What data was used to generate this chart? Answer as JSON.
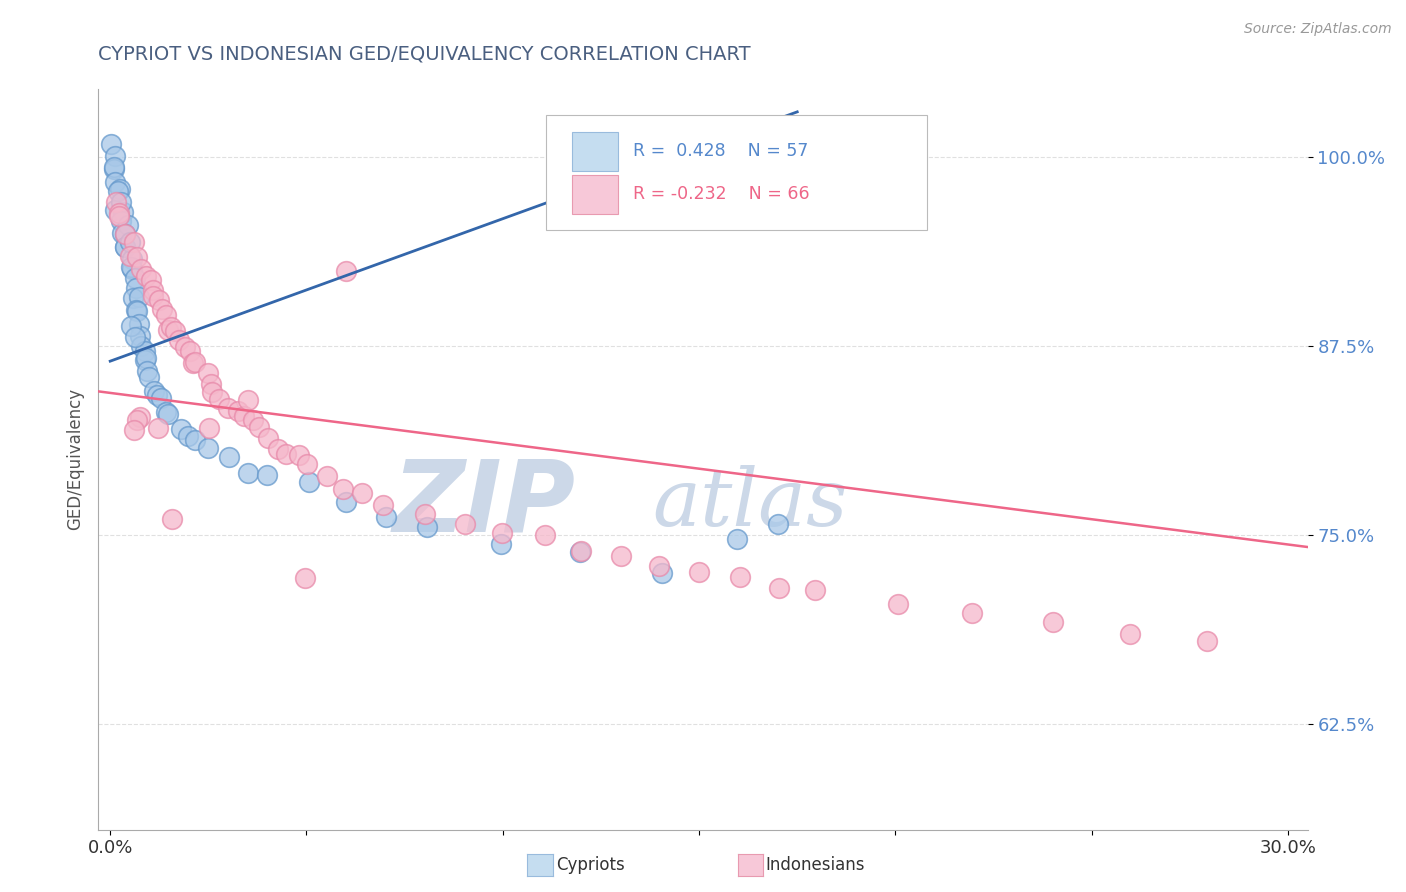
{
  "title": "CYPRIOT VS INDONESIAN GED/EQUIVALENCY CORRELATION CHART",
  "source": "Source: ZipAtlas.com",
  "ylabel": "GED/Equivalency",
  "xlim": [
    -0.003,
    0.305
  ],
  "ylim": [
    0.555,
    1.045
  ],
  "xticks": [
    0.0,
    0.05,
    0.1,
    0.15,
    0.2,
    0.25,
    0.3
  ],
  "xticklabels_show": [
    "0.0%",
    "",
    "",
    "",
    "",
    "",
    "30.0%"
  ],
  "yticks": [
    0.625,
    0.75,
    0.875,
    1.0
  ],
  "yticklabels": [
    "62.5%",
    "75.0%",
    "87.5%",
    "100.0%"
  ],
  "blue_color": "#a8c8e8",
  "pink_color": "#f5b8cb",
  "blue_edge": "#6699cc",
  "pink_edge": "#e88aaa",
  "blue_line_color": "#3366aa",
  "pink_line_color": "#ee6688",
  "title_color": "#4a5f80",
  "source_color": "#999999",
  "watermark_color": "#ccd8e8",
  "ytick_color": "#5588cc",
  "background_color": "#ffffff",
  "grid_color": "#dddddd",
  "blue_trend_x0": 0.0,
  "blue_trend_y0": 0.865,
  "blue_trend_x1": 0.175,
  "blue_trend_y1": 1.03,
  "pink_trend_x0": -0.003,
  "pink_trend_y0": 0.845,
  "pink_trend_x1": 0.305,
  "pink_trend_y1": 0.742,
  "cypriot_x": [
    0.0005,
    0.001,
    0.001,
    0.0015,
    0.0015,
    0.002,
    0.002,
    0.002,
    0.003,
    0.003,
    0.003,
    0.003,
    0.004,
    0.004,
    0.004,
    0.004,
    0.005,
    0.005,
    0.005,
    0.005,
    0.006,
    0.006,
    0.006,
    0.007,
    0.007,
    0.007,
    0.007,
    0.008,
    0.008,
    0.009,
    0.009,
    0.01,
    0.01,
    0.01,
    0.011,
    0.012,
    0.013,
    0.014,
    0.015,
    0.018,
    0.02,
    0.022,
    0.025,
    0.03,
    0.035,
    0.04,
    0.05,
    0.06,
    0.07,
    0.08,
    0.1,
    0.12,
    0.14,
    0.16,
    0.17,
    0.005,
    0.006
  ],
  "cypriot_y": [
    1.005,
    0.998,
    0.99,
    0.995,
    0.982,
    0.978,
    0.968,
    0.975,
    0.962,
    0.97,
    0.958,
    0.952,
    0.955,
    0.948,
    0.942,
    0.938,
    0.935,
    0.93,
    0.925,
    0.945,
    0.92,
    0.915,
    0.91,
    0.905,
    0.9,
    0.895,
    0.888,
    0.882,
    0.877,
    0.873,
    0.868,
    0.863,
    0.858,
    0.852,
    0.848,
    0.842,
    0.838,
    0.832,
    0.828,
    0.822,
    0.818,
    0.812,
    0.808,
    0.8,
    0.795,
    0.788,
    0.78,
    0.772,
    0.762,
    0.755,
    0.748,
    0.738,
    0.728,
    0.748,
    0.755,
    0.89,
    0.88
  ],
  "indonesian_x": [
    0.001,
    0.002,
    0.003,
    0.004,
    0.005,
    0.006,
    0.007,
    0.008,
    0.009,
    0.01,
    0.01,
    0.011,
    0.012,
    0.013,
    0.014,
    0.015,
    0.016,
    0.017,
    0.018,
    0.019,
    0.02,
    0.021,
    0.022,
    0.024,
    0.025,
    0.026,
    0.028,
    0.03,
    0.032,
    0.034,
    0.036,
    0.038,
    0.04,
    0.042,
    0.045,
    0.048,
    0.05,
    0.055,
    0.06,
    0.065,
    0.07,
    0.08,
    0.09,
    0.1,
    0.11,
    0.12,
    0.13,
    0.14,
    0.15,
    0.16,
    0.17,
    0.18,
    0.2,
    0.22,
    0.24,
    0.26,
    0.28,
    0.06,
    0.05,
    0.035,
    0.025,
    0.015,
    0.012,
    0.008,
    0.007,
    0.006
  ],
  "indonesian_y": [
    0.97,
    0.96,
    0.958,
    0.95,
    0.945,
    0.94,
    0.935,
    0.928,
    0.922,
    0.918,
    0.912,
    0.908,
    0.905,
    0.9,
    0.895,
    0.892,
    0.888,
    0.885,
    0.88,
    0.875,
    0.87,
    0.865,
    0.86,
    0.856,
    0.85,
    0.845,
    0.84,
    0.836,
    0.832,
    0.828,
    0.825,
    0.82,
    0.815,
    0.81,
    0.805,
    0.8,
    0.795,
    0.788,
    0.782,
    0.778,
    0.772,
    0.765,
    0.758,
    0.752,
    0.748,
    0.742,
    0.738,
    0.732,
    0.728,
    0.722,
    0.718,
    0.712,
    0.705,
    0.698,
    0.692,
    0.685,
    0.678,
    0.925,
    0.72,
    0.84,
    0.82,
    0.76,
    0.82,
    0.83,
    0.825,
    0.82
  ]
}
